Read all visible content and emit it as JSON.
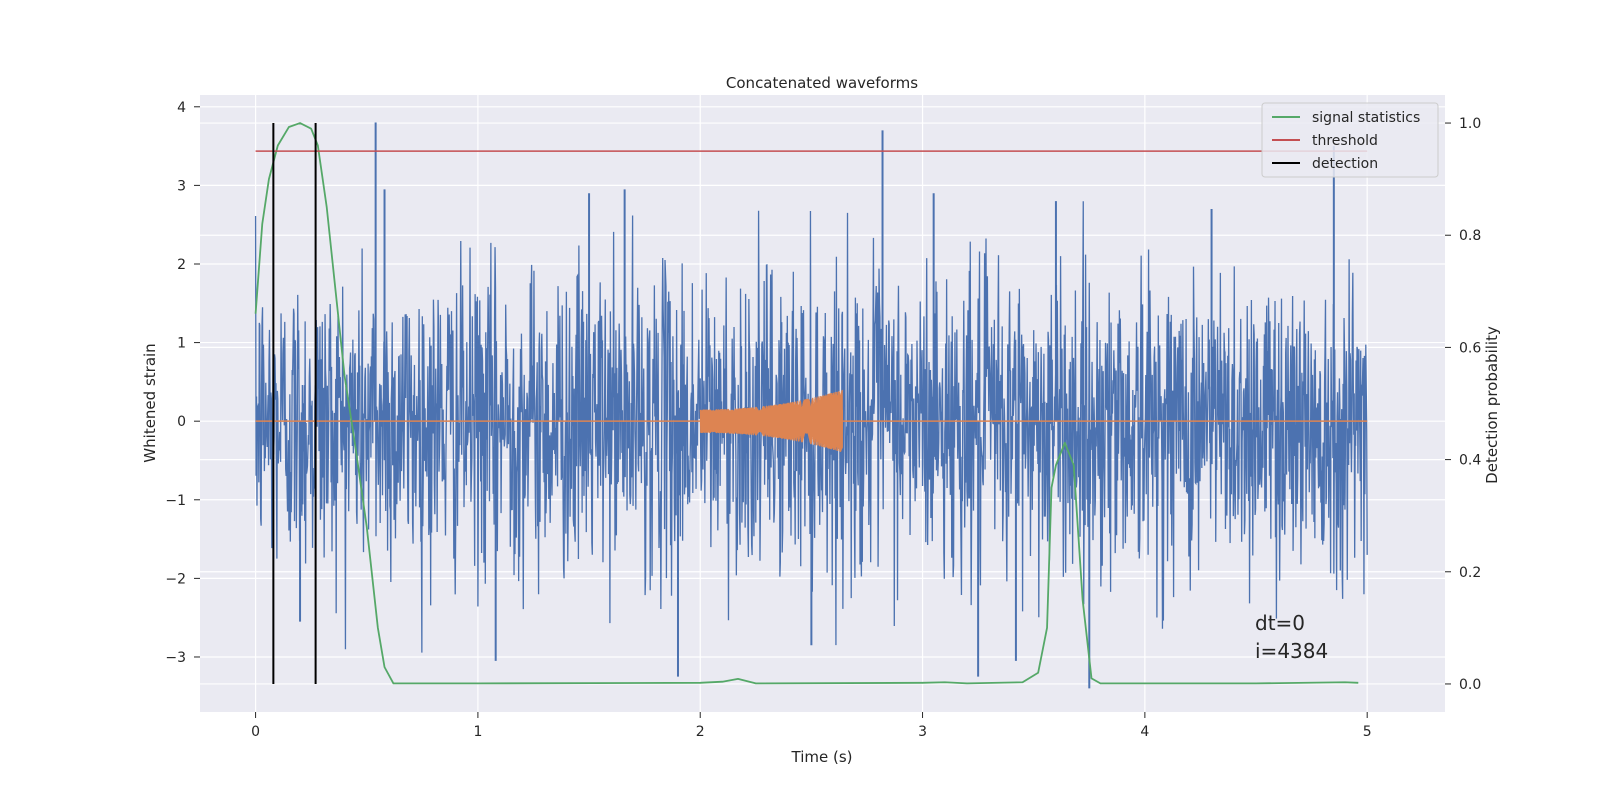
{
  "chart_data": {
    "type": "line",
    "title": "Concatenated waveforms",
    "xlabel": "Time (s)",
    "ylabel": "Whitened strain",
    "y2label": "Detection probability",
    "xlim": [
      -0.25,
      5.35
    ],
    "ylim": [
      -3.7,
      4.15
    ],
    "y2lim": [
      -0.05,
      1.05
    ],
    "xticks": [
      0,
      1,
      2,
      3,
      4,
      5
    ],
    "yticks": [
      -3,
      -2,
      -1,
      0,
      1,
      2,
      3,
      4
    ],
    "y2ticks": [
      0.0,
      0.2,
      0.4,
      0.6,
      0.8,
      1.0
    ],
    "grid": true,
    "legend_position": "top-right",
    "series": [
      {
        "name": "",
        "axis": "left",
        "kind": "noise",
        "color": "#4c72b0",
        "x_range": [
          0,
          5
        ],
        "description_level": "whitened strain noise, typical amplitude ±1.8, spikes up to 3.8 and down to -3.4",
        "spikes": [
          {
            "x": 0.54,
            "y": 3.8
          },
          {
            "x": 2.82,
            "y": 3.7
          },
          {
            "x": 4.85,
            "y": 3.5
          },
          {
            "x": 0.58,
            "y": 2.95
          },
          {
            "x": 1.5,
            "y": 2.9
          },
          {
            "x": 1.66,
            "y": 2.95
          },
          {
            "x": 3.05,
            "y": 2.9
          },
          {
            "x": 3.6,
            "y": 2.8
          },
          {
            "x": 4.3,
            "y": 2.7
          },
          {
            "x": 1.9,
            "y": -3.25
          },
          {
            "x": 3.25,
            "y": -3.25
          },
          {
            "x": 3.75,
            "y": -3.4
          },
          {
            "x": 1.08,
            "y": -3.05
          },
          {
            "x": 2.5,
            "y": -2.85
          },
          {
            "x": 0.2,
            "y": -2.55
          },
          {
            "x": 3.42,
            "y": -3.05
          }
        ]
      },
      {
        "name": "",
        "axis": "left",
        "kind": "chirp",
        "color": "#dd8452",
        "x_range": [
          0,
          5
        ],
        "chirp_start": 2.0,
        "chirp_end": 2.64,
        "amp_start": 0.15,
        "amp_end": 0.4
      },
      {
        "name": "signal statistics",
        "axis": "right",
        "color": "#55a868",
        "x": [
          0,
          0.03,
          0.06,
          0.1,
          0.15,
          0.2,
          0.25,
          0.28,
          0.32,
          0.36,
          0.4,
          0.45,
          0.5,
          0.55,
          0.58,
          0.62,
          0.8,
          1.0,
          2.0,
          2.1,
          2.17,
          2.25,
          3.0,
          3.1,
          3.2,
          3.45,
          3.52,
          3.56,
          3.58,
          3.6,
          3.64,
          3.68,
          3.72,
          3.76,
          3.8,
          4.5,
          4.9,
          4.96
        ],
        "y": [
          0.66,
          0.82,
          0.9,
          0.96,
          0.993,
          1.0,
          0.99,
          0.96,
          0.85,
          0.7,
          0.55,
          0.42,
          0.28,
          0.1,
          0.03,
          0.001,
          0.001,
          0.001,
          0.002,
          0.004,
          0.009,
          0.001,
          0.002,
          0.003,
          0.001,
          0.003,
          0.02,
          0.1,
          0.35,
          0.39,
          0.43,
          0.39,
          0.15,
          0.01,
          0.001,
          0.001,
          0.003,
          0.002
        ]
      },
      {
        "name": "threshold",
        "axis": "right",
        "color": "#c44e52",
        "x": [
          0,
          5
        ],
        "y": [
          0.95,
          0.95
        ]
      },
      {
        "name": "detection",
        "axis": "right",
        "color": "#000000",
        "vlines": [
          0.08,
          0.27
        ],
        "ymin": 0,
        "ymax": 1
      }
    ],
    "annotations": [
      "dt=0",
      "i=4384"
    ]
  }
}
